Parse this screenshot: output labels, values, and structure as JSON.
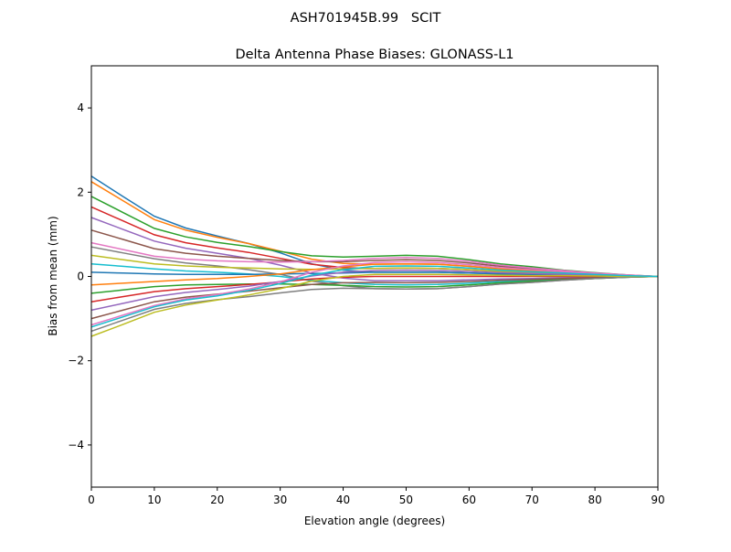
{
  "chart_data": {
    "type": "line",
    "suptitle": "ASH701945B.99   SCIT",
    "title": "Delta Antenna Phase Biases: GLONASS-L1",
    "xlabel": "Elevation angle (degrees)",
    "ylabel": "Bias from mean (mm)",
    "xlim": [
      0,
      90
    ],
    "ylim": [
      -5,
      5
    ],
    "xticks": [
      0,
      10,
      20,
      30,
      40,
      50,
      60,
      70,
      80,
      90
    ],
    "yticks": [
      -4,
      -2,
      0,
      2,
      4
    ],
    "ytick_labels": [
      "−4",
      "−2",
      "0",
      "2",
      "4"
    ],
    "grid": false,
    "legend": "none",
    "colors": [
      "#1f77b4",
      "#ff7f0e",
      "#2ca02c",
      "#d62728",
      "#9467bd",
      "#8c564b",
      "#e377c2",
      "#7f7f7f",
      "#bcbd22",
      "#17becf"
    ],
    "x": [
      0,
      5,
      10,
      15,
      20,
      25,
      30,
      35,
      40,
      45,
      50,
      55,
      60,
      65,
      70,
      75,
      80,
      85,
      90
    ],
    "series": [
      {
        "values": [
          2.38,
          1.9,
          1.43,
          1.15,
          0.96,
          0.78,
          0.56,
          0.3,
          0.15,
          0.1,
          0.1,
          0.1,
          0.08,
          0.06,
          0.05,
          0.03,
          0.02,
          0.01,
          0
        ]
      },
      {
        "values": [
          2.25,
          1.8,
          1.35,
          1.1,
          0.93,
          0.78,
          0.6,
          0.41,
          0.31,
          0.29,
          0.3,
          0.29,
          0.24,
          0.18,
          0.14,
          0.09,
          0.05,
          0.02,
          0
        ]
      },
      {
        "values": [
          1.9,
          1.52,
          1.14,
          0.94,
          0.81,
          0.71,
          0.59,
          0.49,
          0.46,
          0.48,
          0.5,
          0.48,
          0.4,
          0.3,
          0.23,
          0.15,
          0.09,
          0.04,
          0
        ]
      },
      {
        "values": [
          1.65,
          1.32,
          0.99,
          0.8,
          0.68,
          0.57,
          0.43,
          0.29,
          0.21,
          0.19,
          0.2,
          0.19,
          0.16,
          0.12,
          0.09,
          0.06,
          0.04,
          0.02,
          0
        ]
      },
      {
        "values": [
          1.4,
          1.12,
          0.84,
          0.67,
          0.55,
          0.43,
          0.27,
          0.08,
          -0.04,
          -0.1,
          -0.1,
          -0.1,
          -0.08,
          -0.06,
          -0.05,
          -0.03,
          -0.02,
          -0.01,
          0
        ]
      },
      {
        "values": [
          1.1,
          0.88,
          0.66,
          0.55,
          0.48,
          0.43,
          0.38,
          0.35,
          0.35,
          0.38,
          0.4,
          0.38,
          0.32,
          0.24,
          0.18,
          0.12,
          0.07,
          0.03,
          0
        ]
      },
      {
        "values": [
          0.8,
          0.64,
          0.48,
          0.41,
          0.37,
          0.35,
          0.34,
          0.35,
          0.38,
          0.43,
          0.45,
          0.43,
          0.36,
          0.27,
          0.2,
          0.14,
          0.08,
          0.04,
          0
        ]
      },
      {
        "values": [
          0.7,
          0.56,
          0.42,
          0.32,
          0.25,
          0.16,
          0.05,
          -0.11,
          -0.22,
          -0.29,
          -0.3,
          -0.29,
          -0.24,
          -0.18,
          -0.14,
          -0.09,
          -0.05,
          -0.02,
          0
        ]
      },
      {
        "values": [
          0.5,
          0.4,
          0.3,
          0.25,
          0.22,
          0.2,
          0.18,
          0.17,
          0.18,
          0.19,
          0.2,
          0.19,
          0.16,
          0.12,
          0.09,
          0.06,
          0.04,
          0.02,
          0
        ]
      },
      {
        "values": [
          0.3,
          0.24,
          0.18,
          0.13,
          0.1,
          0.06,
          0.0,
          -0.09,
          -0.15,
          -0.19,
          -0.2,
          -0.19,
          -0.16,
          -0.12,
          -0.09,
          -0.06,
          -0.04,
          -0.02,
          0
        ]
      },
      {
        "values": [
          0.1,
          0.08,
          0.06,
          0.05,
          0.05,
          0.05,
          0.06,
          0.07,
          0.08,
          0.1,
          0.1,
          0.1,
          0.08,
          0.06,
          0.05,
          0.03,
          0.02,
          0.01,
          0
        ]
      },
      {
        "values": [
          -0.2,
          -0.16,
          -0.12,
          -0.08,
          -0.05,
          0.0,
          0.06,
          0.16,
          0.23,
          0.29,
          0.3,
          0.29,
          0.24,
          0.18,
          0.14,
          0.09,
          0.05,
          0.02,
          0
        ]
      },
      {
        "values": [
          -0.4,
          -0.32,
          -0.24,
          -0.2,
          -0.19,
          -0.18,
          -0.18,
          -0.19,
          -0.21,
          -0.24,
          -0.25,
          -0.24,
          -0.2,
          -0.15,
          -0.11,
          -0.08,
          -0.05,
          -0.02,
          0
        ]
      },
      {
        "values": [
          -0.6,
          -0.48,
          -0.36,
          -0.29,
          -0.24,
          -0.19,
          -0.13,
          -0.06,
          -0.02,
          0,
          0,
          0,
          0,
          0,
          0,
          0,
          0,
          0,
          0
        ]
      },
      {
        "values": [
          -0.8,
          -0.64,
          -0.48,
          -0.38,
          -0.31,
          -0.23,
          -0.12,
          0.01,
          0.1,
          0.14,
          0.15,
          0.14,
          0.12,
          0.09,
          0.07,
          0.05,
          0.03,
          0.01,
          0
        ]
      },
      {
        "values": [
          -1.0,
          -0.8,
          -0.6,
          -0.49,
          -0.42,
          -0.35,
          -0.27,
          -0.19,
          -0.15,
          -0.14,
          -0.15,
          -0.14,
          -0.12,
          -0.09,
          -0.07,
          -0.05,
          -0.03,
          -0.01,
          0
        ]
      },
      {
        "values": [
          -1.15,
          -0.92,
          -0.69,
          -0.53,
          -0.43,
          -0.3,
          -0.13,
          0.1,
          0.25,
          0.33,
          0.35,
          0.33,
          0.28,
          0.21,
          0.16,
          0.11,
          0.06,
          0.03,
          0
        ]
      },
      {
        "values": [
          -1.3,
          -1.04,
          -0.78,
          -0.64,
          -0.55,
          -0.48,
          -0.39,
          -0.31,
          -0.28,
          -0.29,
          -0.3,
          -0.29,
          -0.24,
          -0.18,
          -0.14,
          -0.09,
          -0.05,
          -0.02,
          0
        ]
      },
      {
        "values": [
          -1.42,
          -1.14,
          -0.85,
          -0.68,
          -0.56,
          -0.44,
          -0.29,
          -0.11,
          0.0,
          0.05,
          0.05,
          0.05,
          0.04,
          0.03,
          0.02,
          0.02,
          0.01,
          0.0,
          0
        ]
      },
      {
        "values": [
          -1.2,
          -0.96,
          -0.72,
          -0.56,
          -0.46,
          -0.33,
          -0.17,
          0.03,
          0.16,
          0.24,
          0.25,
          0.24,
          0.2,
          0.15,
          0.11,
          0.08,
          0.05,
          0.02,
          0
        ]
      }
    ]
  }
}
